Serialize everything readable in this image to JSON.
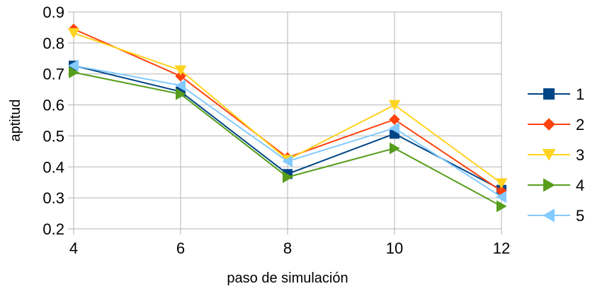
{
  "chart_data": {
    "type": "line",
    "title": "",
    "xlabel": "paso de simulación",
    "ylabel": "aptitud",
    "x": [
      4,
      6,
      8,
      10,
      12
    ],
    "xlim": [
      4,
      12
    ],
    "ylim": [
      0.2,
      0.9
    ],
    "x_ticks": [
      4,
      6,
      8,
      10,
      12
    ],
    "y_ticks": [
      0.2,
      0.3,
      0.4,
      0.5,
      0.6,
      0.7,
      0.8,
      0.9
    ],
    "grid": "horizontal",
    "legend_position": "right",
    "series": [
      {
        "name": "1",
        "color": "#004586",
        "marker": "square",
        "values": [
          0.727,
          0.643,
          0.377,
          0.507,
          0.326
        ]
      },
      {
        "name": "2",
        "color": "#ff420e",
        "marker": "diamond",
        "values": [
          0.845,
          0.693,
          0.43,
          0.553,
          0.322
        ]
      },
      {
        "name": "3",
        "color": "#ffd320",
        "marker": "triangle-down",
        "values": [
          0.832,
          0.712,
          0.423,
          0.6,
          0.347
        ]
      },
      {
        "name": "4",
        "color": "#579d1c",
        "marker": "triangle-right",
        "values": [
          0.705,
          0.635,
          0.367,
          0.46,
          0.273
        ]
      },
      {
        "name": "5",
        "color": "#83caff",
        "marker": "triangle-left",
        "values": [
          0.727,
          0.663,
          0.418,
          0.525,
          0.303
        ]
      }
    ]
  }
}
